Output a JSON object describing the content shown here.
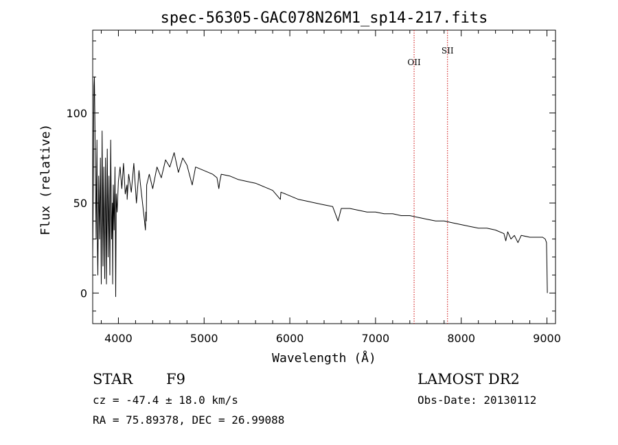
{
  "chart_data": {
    "type": "line",
    "title": "spec-56305-GAC078N26M1_sp14-217.fits",
    "xlabel": "Wavelength (Å)",
    "ylabel": "Flux (relative)",
    "xlim": [
      3700,
      9100
    ],
    "ylim": [
      -17,
      146
    ],
    "x_ticks": [
      4000,
      5000,
      6000,
      7000,
      8000,
      9000
    ],
    "x_tick_labels": [
      "4000",
      "5000",
      "6000",
      "7000",
      "8000",
      "9000"
    ],
    "y_ticks": [
      0,
      50,
      100
    ],
    "y_tick_labels": [
      "0",
      "50",
      "100"
    ],
    "grid": false,
    "series": [
      {
        "color": "#000000",
        "x": [
          3700,
          3705,
          3710,
          3715,
          3720,
          3725,
          3730,
          3735,
          3740,
          3745,
          3750,
          3755,
          3760,
          3770,
          3780,
          3790,
          3800,
          3810,
          3820,
          3830,
          3840,
          3850,
          3860,
          3870,
          3880,
          3890,
          3900,
          3910,
          3920,
          3930,
          3933,
          3940,
          3950,
          3960,
          3968,
          3975,
          3985,
          4000,
          4020,
          4040,
          4060,
          4080,
          4100,
          4102,
          4120,
          4150,
          4180,
          4210,
          4240,
          4270,
          4300,
          4315,
          4320,
          4325,
          4330,
          4360,
          4400,
          4450,
          4500,
          4550,
          4600,
          4650,
          4700,
          4750,
          4800,
          4861,
          4900,
          5000,
          5100,
          5150,
          5172,
          5183,
          5200,
          5300,
          5400,
          5500,
          5600,
          5700,
          5800,
          5890,
          5896,
          5950,
          6000,
          6100,
          6200,
          6300,
          6400,
          6500,
          6563,
          6600,
          6700,
          6800,
          6900,
          7000,
          7100,
          7200,
          7300,
          7400,
          7500,
          7600,
          7700,
          7800,
          7900,
          8000,
          8100,
          8200,
          8300,
          8400,
          8498,
          8520,
          8542,
          8580,
          8620,
          8662,
          8700,
          8800,
          8900,
          8950,
          8980,
          8995,
          9000,
          9005
        ],
        "values": [
          20,
          45,
          85,
          115,
          120,
          100,
          75,
          50,
          30,
          60,
          85,
          25,
          10,
          65,
          30,
          75,
          5,
          90,
          15,
          70,
          8,
          75,
          5,
          80,
          20,
          65,
          10,
          85,
          30,
          50,
          5,
          60,
          35,
          70,
          -2,
          55,
          45,
          62,
          70,
          58,
          72,
          55,
          60,
          52,
          66,
          56,
          72,
          50,
          68,
          55,
          42,
          35,
          45,
          40,
          60,
          66,
          58,
          70,
          64,
          74,
          70,
          78,
          67,
          75,
          71,
          60,
          70,
          68,
          66,
          64,
          58,
          62,
          66,
          65,
          63,
          62,
          61,
          59,
          57,
          52,
          56,
          55,
          54,
          52,
          51,
          50,
          49,
          48,
          40,
          47,
          47,
          46,
          45,
          45,
          44,
          44,
          43,
          43,
          42,
          41,
          40,
          40,
          39,
          38,
          37,
          36,
          36,
          35,
          33,
          29,
          34,
          30,
          32,
          28,
          32,
          31,
          31,
          31,
          30,
          28,
          15,
          0
        ]
      }
    ],
    "lines": [
      {
        "label": "OII",
        "x": 7450,
        "color": "#cc0000",
        "style": "dotted"
      },
      {
        "label": "SII",
        "x": 7840,
        "color": "#cc0000",
        "style": "dotted"
      }
    ]
  },
  "info": {
    "object_type": "STAR",
    "subclass": "F9",
    "cz": "cz = -47.4 ± 18.0 km/s",
    "coords": "RA =  75.89378, DEC =  26.99088",
    "survey": "LAMOST DR2",
    "obs_date": "Obs-Date: 20130112"
  }
}
